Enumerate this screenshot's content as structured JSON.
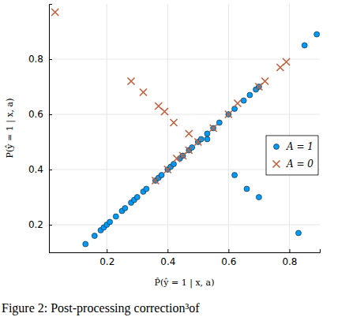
{
  "chart_data": {
    "type": "scatter",
    "xlabel": "P̂(ŷ = 1 | x, a)",
    "ylabel": "P(ŷ = 1 | x, a)",
    "caption": "Figure 2: Post-processing correction³of",
    "xlim": [
      0.01,
      0.9
    ],
    "ylim": [
      0.1,
      1.0
    ],
    "xticks": [
      0.2,
      0.4,
      0.6,
      0.8
    ],
    "yticks": [
      0.2,
      0.4,
      0.6,
      0.8
    ],
    "grid": true,
    "legend": "right",
    "series": [
      {
        "name": "A = 1",
        "color": "#009af9",
        "marker": "circle",
        "x": [
          0.13,
          0.16,
          0.18,
          0.19,
          0.2,
          0.21,
          0.23,
          0.25,
          0.26,
          0.28,
          0.29,
          0.3,
          0.32,
          0.33,
          0.36,
          0.37,
          0.38,
          0.4,
          0.41,
          0.42,
          0.44,
          0.45,
          0.47,
          0.48,
          0.5,
          0.51,
          0.53,
          0.55,
          0.57,
          0.6,
          0.62,
          0.65,
          0.67,
          0.69,
          0.7,
          0.85,
          0.89,
          0.53,
          0.62,
          0.66,
          0.7,
          0.83
        ],
        "values": [
          0.13,
          0.16,
          0.18,
          0.19,
          0.2,
          0.21,
          0.23,
          0.25,
          0.26,
          0.28,
          0.29,
          0.3,
          0.32,
          0.33,
          0.36,
          0.37,
          0.38,
          0.4,
          0.41,
          0.42,
          0.44,
          0.45,
          0.47,
          0.48,
          0.5,
          0.51,
          0.53,
          0.55,
          0.57,
          0.6,
          0.62,
          0.65,
          0.67,
          0.69,
          0.7,
          0.85,
          0.89,
          0.51,
          0.38,
          0.33,
          0.3,
          0.17
        ]
      },
      {
        "name": "A = 0",
        "color": "#c0603e",
        "marker": "x",
        "x": [
          0.03,
          0.28,
          0.32,
          0.37,
          0.39,
          0.42,
          0.47,
          0.36,
          0.4,
          0.43,
          0.45,
          0.47,
          0.5,
          0.55,
          0.6,
          0.63,
          0.7,
          0.72,
          0.77,
          0.79
        ],
        "values": [
          0.97,
          0.72,
          0.68,
          0.63,
          0.61,
          0.57,
          0.53,
          0.36,
          0.4,
          0.44,
          0.45,
          0.47,
          0.5,
          0.55,
          0.6,
          0.64,
          0.7,
          0.72,
          0.77,
          0.79
        ]
      }
    ]
  }
}
